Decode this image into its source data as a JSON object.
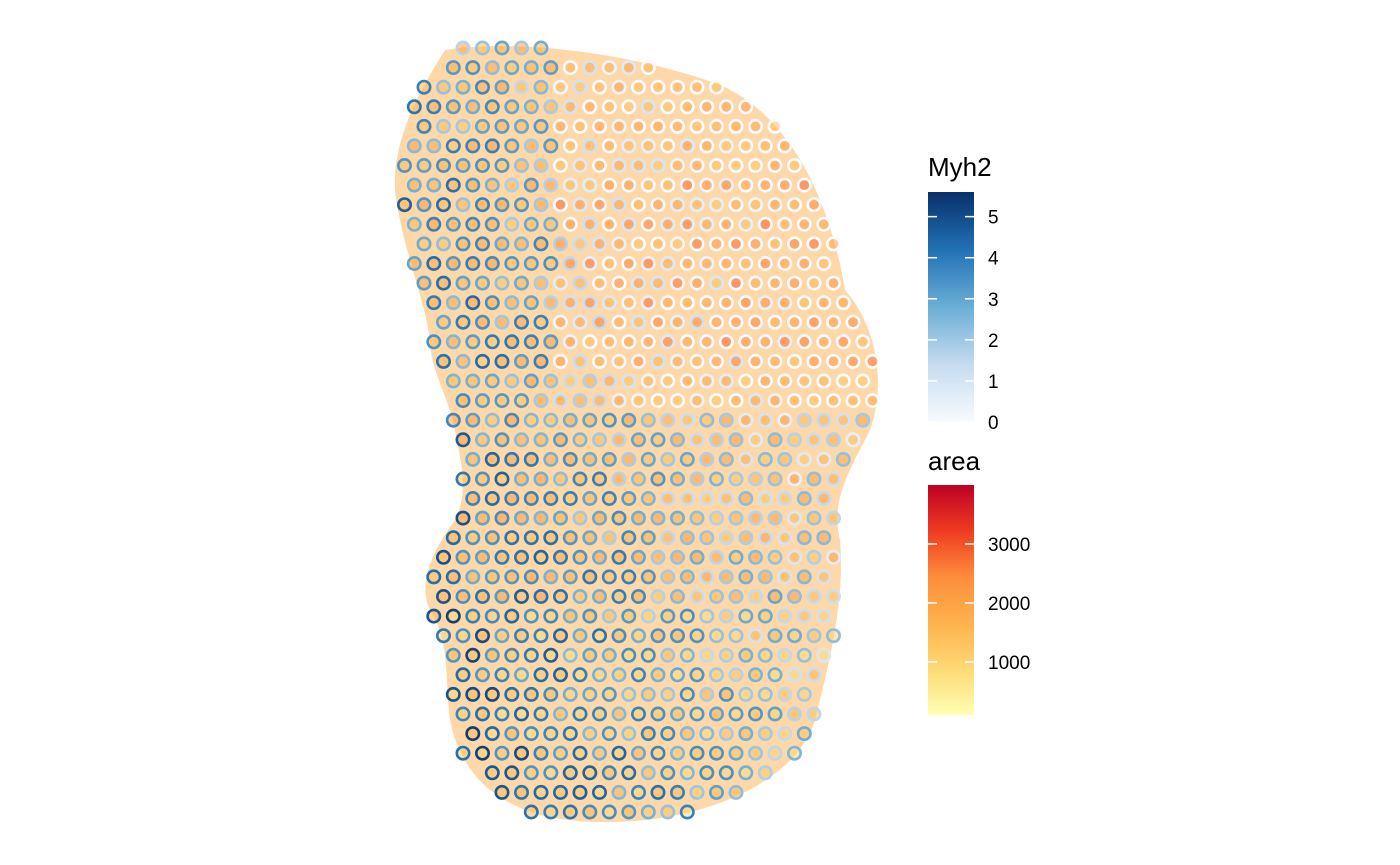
{
  "chart_data": {
    "type": "scatter",
    "description_note": "",
    "title": "",
    "xlabel": "",
    "ylabel": "",
    "grid": false,
    "legend_placement": "right",
    "legends": [
      {
        "title": "Myh2",
        "kind": "continuous",
        "aesthetic": "spot outline color",
        "range": [
          0,
          5.6
        ],
        "ticks": [
          0,
          1,
          2,
          3,
          4,
          5
        ],
        "tick_labels": [
          "0",
          "1",
          "2",
          "3",
          "4",
          "5"
        ],
        "colors": [
          "#f7fbff",
          "#c6dbef",
          "#6baed6",
          "#2171b5",
          "#08306b"
        ]
      },
      {
        "title": "area",
        "kind": "continuous",
        "aesthetic": "spot fill color",
        "range": [
          100,
          4000
        ],
        "ticks": [
          1000,
          2000,
          3000
        ],
        "tick_labels": [
          "1000",
          "2000",
          "3000"
        ],
        "colors": [
          "#ffffb2",
          "#fed976",
          "#feb24c",
          "#fd8d3c",
          "#f03b20",
          "#bd0026"
        ]
      }
    ]
  }
}
